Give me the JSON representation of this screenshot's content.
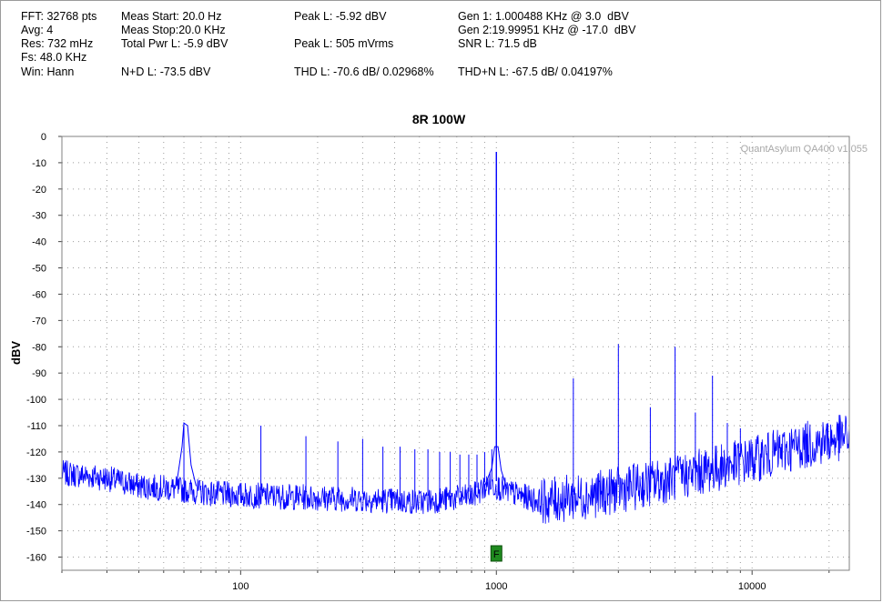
{
  "stats": {
    "fft": "FFT: 32768 pts",
    "avg": "Avg: 4",
    "res": "Res: 732 mHz",
    "fs": "Fs: 48.0 KHz",
    "win": "Win: Hann",
    "meas_start": "Meas Start: 20.0 Hz",
    "meas_stop": "Meas Stop:20.0 KHz",
    "total_pwr": "Total Pwr L: -5.9 dBV",
    "nd": "N+D L: -73.5 dBV",
    "peak_dbv": "Peak L: -5.92 dBV",
    "peak_mv": "Peak L: 505 mVrms",
    "thd": "THD L: -70.6 dB/ 0.02968%",
    "gen1": "Gen 1: 1.000488 KHz @ 3.0  dBV",
    "gen2": "Gen 2:19.99951 KHz @ -17.0  dBV",
    "snr": "SNR L: 71.5 dB",
    "thdn": "THD+N L: -67.5 dB/ 0.04197%"
  },
  "chart_data": {
    "type": "line",
    "title": "8R 100W",
    "ylabel": "dBV",
    "xlabel": "",
    "watermark": "QuantAsylum QA400 v1.055",
    "marker_label": "F",
    "marker_x": 1000,
    "x_scale": "log",
    "xlim": [
      20,
      24000
    ],
    "ylim": [
      -165,
      0
    ],
    "x_ticks": [
      100,
      1000,
      10000
    ],
    "y_ticks": [
      0,
      -10,
      -20,
      -30,
      -40,
      -50,
      -60,
      -70,
      -80,
      -90,
      -100,
      -110,
      -120,
      -130,
      -140,
      -150,
      -160
    ],
    "grid": true,
    "line_color": "#0000ff",
    "fundamental": {
      "x": 1000,
      "y": -5.9
    },
    "harmonics": [
      {
        "x": 2000,
        "y": -92
      },
      {
        "x": 3000,
        "y": -79
      },
      {
        "x": 4000,
        "y": -103
      },
      {
        "x": 5000,
        "y": -80
      },
      {
        "x": 6000,
        "y": -105
      },
      {
        "x": 7000,
        "y": -91
      },
      {
        "x": 8000,
        "y": -109
      },
      {
        "x": 9000,
        "y": -111
      }
    ],
    "hum_spurs": [
      {
        "x": 60,
        "y": -109
      },
      {
        "x": 120,
        "y": -110
      },
      {
        "x": 180,
        "y": -114
      },
      {
        "x": 240,
        "y": -116
      },
      {
        "x": 300,
        "y": -115
      },
      {
        "x": 360,
        "y": -118
      },
      {
        "x": 420,
        "y": -118
      },
      {
        "x": 480,
        "y": -119
      },
      {
        "x": 540,
        "y": -119
      },
      {
        "x": 600,
        "y": -120
      },
      {
        "x": 660,
        "y": -120
      },
      {
        "x": 720,
        "y": -121
      },
      {
        "x": 780,
        "y": -121
      },
      {
        "x": 840,
        "y": -121
      },
      {
        "x": 900,
        "y": -120
      },
      {
        "x": 960,
        "y": -119
      }
    ],
    "noise_floor": [
      {
        "x": 20,
        "y": -128
      },
      {
        "x": 30,
        "y": -130
      },
      {
        "x": 40,
        "y": -133
      },
      {
        "x": 55,
        "y": -134
      },
      {
        "x": 80,
        "y": -136
      },
      {
        "x": 150,
        "y": -137
      },
      {
        "x": 300,
        "y": -138
      },
      {
        "x": 500,
        "y": -139
      },
      {
        "x": 800,
        "y": -137
      },
      {
        "x": 950,
        "y": -132
      },
      {
        "x": 1100,
        "y": -135
      },
      {
        "x": 1500,
        "y": -139
      },
      {
        "x": 2500,
        "y": -136
      },
      {
        "x": 4000,
        "y": -132
      },
      {
        "x": 6000,
        "y": -128
      },
      {
        "x": 10000,
        "y": -123
      },
      {
        "x": 15000,
        "y": -118
      },
      {
        "x": 24000,
        "y": -114
      }
    ]
  }
}
